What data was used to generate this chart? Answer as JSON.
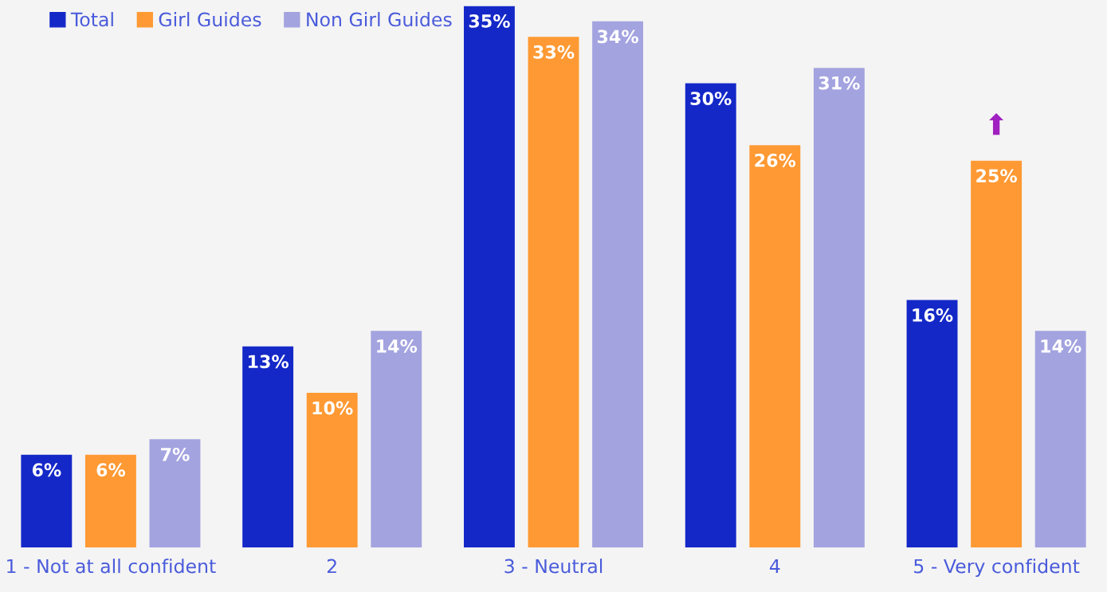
{
  "chart_data": {
    "type": "bar",
    "categories": [
      "1 - Not at all confident",
      "2",
      "3 - Neutral",
      "4",
      "5 - Very confident"
    ],
    "series": [
      {
        "name": "Total",
        "color": "#1428c8",
        "values": [
          6,
          13,
          35,
          30,
          16
        ],
        "value_labels": [
          "6%",
          "13%",
          "35%",
          "30%",
          "16%"
        ]
      },
      {
        "name": "Girl Guides",
        "color": "#ff9933",
        "values": [
          6,
          10,
          33,
          26,
          25
        ],
        "value_labels": [
          "6%",
          "10%",
          "33%",
          "26%",
          "25%"
        ]
      },
      {
        "name": "Non Girl Guides",
        "color": "#a3a3e0",
        "values": [
          7,
          14,
          34,
          31,
          14
        ],
        "value_labels": [
          "7%",
          "14%",
          "34%",
          "31%",
          "14%"
        ]
      }
    ],
    "legend": "top left",
    "annotations": [
      {
        "text": "⬆",
        "x": "5 - Very confident",
        "y": 25
      }
    ]
  }
}
